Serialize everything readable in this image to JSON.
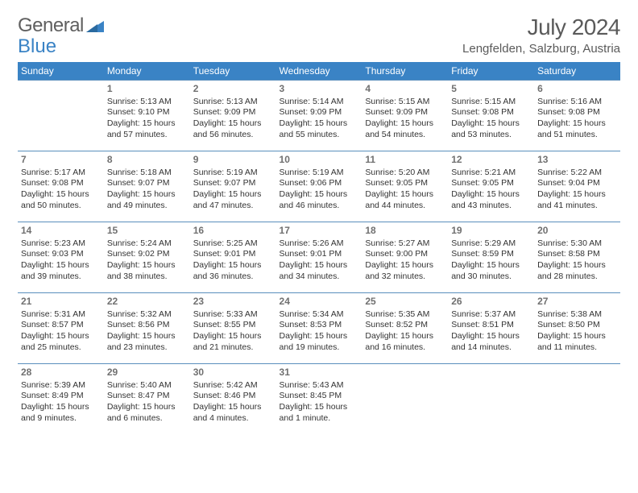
{
  "logo": {
    "text_a": "General",
    "text_b": "Blue",
    "text_color": "#5f5f5f",
    "accent_color": "#3a83c5"
  },
  "header": {
    "month_year": "July 2024",
    "location": "Lengfelden, Salzburg, Austria"
  },
  "colors": {
    "header_bg": "#3a83c5",
    "header_text": "#ffffff",
    "cell_border": "#5a8fbd",
    "daynum_color": "#707070",
    "body_text": "#333333",
    "page_bg": "#ffffff"
  },
  "dow": [
    "Sunday",
    "Monday",
    "Tuesday",
    "Wednesday",
    "Thursday",
    "Friday",
    "Saturday"
  ],
  "weeks": [
    [
      null,
      {
        "n": "1",
        "sr": "5:13 AM",
        "ss": "9:10 PM",
        "dl": "15 hours and 57 minutes."
      },
      {
        "n": "2",
        "sr": "5:13 AM",
        "ss": "9:09 PM",
        "dl": "15 hours and 56 minutes."
      },
      {
        "n": "3",
        "sr": "5:14 AM",
        "ss": "9:09 PM",
        "dl": "15 hours and 55 minutes."
      },
      {
        "n": "4",
        "sr": "5:15 AM",
        "ss": "9:09 PM",
        "dl": "15 hours and 54 minutes."
      },
      {
        "n": "5",
        "sr": "5:15 AM",
        "ss": "9:08 PM",
        "dl": "15 hours and 53 minutes."
      },
      {
        "n": "6",
        "sr": "5:16 AM",
        "ss": "9:08 PM",
        "dl": "15 hours and 51 minutes."
      }
    ],
    [
      {
        "n": "7",
        "sr": "5:17 AM",
        "ss": "9:08 PM",
        "dl": "15 hours and 50 minutes."
      },
      {
        "n": "8",
        "sr": "5:18 AM",
        "ss": "9:07 PM",
        "dl": "15 hours and 49 minutes."
      },
      {
        "n": "9",
        "sr": "5:19 AM",
        "ss": "9:07 PM",
        "dl": "15 hours and 47 minutes."
      },
      {
        "n": "10",
        "sr": "5:19 AM",
        "ss": "9:06 PM",
        "dl": "15 hours and 46 minutes."
      },
      {
        "n": "11",
        "sr": "5:20 AM",
        "ss": "9:05 PM",
        "dl": "15 hours and 44 minutes."
      },
      {
        "n": "12",
        "sr": "5:21 AM",
        "ss": "9:05 PM",
        "dl": "15 hours and 43 minutes."
      },
      {
        "n": "13",
        "sr": "5:22 AM",
        "ss": "9:04 PM",
        "dl": "15 hours and 41 minutes."
      }
    ],
    [
      {
        "n": "14",
        "sr": "5:23 AM",
        "ss": "9:03 PM",
        "dl": "15 hours and 39 minutes."
      },
      {
        "n": "15",
        "sr": "5:24 AM",
        "ss": "9:02 PM",
        "dl": "15 hours and 38 minutes."
      },
      {
        "n": "16",
        "sr": "5:25 AM",
        "ss": "9:01 PM",
        "dl": "15 hours and 36 minutes."
      },
      {
        "n": "17",
        "sr": "5:26 AM",
        "ss": "9:01 PM",
        "dl": "15 hours and 34 minutes."
      },
      {
        "n": "18",
        "sr": "5:27 AM",
        "ss": "9:00 PM",
        "dl": "15 hours and 32 minutes."
      },
      {
        "n": "19",
        "sr": "5:29 AM",
        "ss": "8:59 PM",
        "dl": "15 hours and 30 minutes."
      },
      {
        "n": "20",
        "sr": "5:30 AM",
        "ss": "8:58 PM",
        "dl": "15 hours and 28 minutes."
      }
    ],
    [
      {
        "n": "21",
        "sr": "5:31 AM",
        "ss": "8:57 PM",
        "dl": "15 hours and 25 minutes."
      },
      {
        "n": "22",
        "sr": "5:32 AM",
        "ss": "8:56 PM",
        "dl": "15 hours and 23 minutes."
      },
      {
        "n": "23",
        "sr": "5:33 AM",
        "ss": "8:55 PM",
        "dl": "15 hours and 21 minutes."
      },
      {
        "n": "24",
        "sr": "5:34 AM",
        "ss": "8:53 PM",
        "dl": "15 hours and 19 minutes."
      },
      {
        "n": "25",
        "sr": "5:35 AM",
        "ss": "8:52 PM",
        "dl": "15 hours and 16 minutes."
      },
      {
        "n": "26",
        "sr": "5:37 AM",
        "ss": "8:51 PM",
        "dl": "15 hours and 14 minutes."
      },
      {
        "n": "27",
        "sr": "5:38 AM",
        "ss": "8:50 PM",
        "dl": "15 hours and 11 minutes."
      }
    ],
    [
      {
        "n": "28",
        "sr": "5:39 AM",
        "ss": "8:49 PM",
        "dl": "15 hours and 9 minutes."
      },
      {
        "n": "29",
        "sr": "5:40 AM",
        "ss": "8:47 PM",
        "dl": "15 hours and 6 minutes."
      },
      {
        "n": "30",
        "sr": "5:42 AM",
        "ss": "8:46 PM",
        "dl": "15 hours and 4 minutes."
      },
      {
        "n": "31",
        "sr": "5:43 AM",
        "ss": "8:45 PM",
        "dl": "15 hours and 1 minute."
      },
      null,
      null,
      null
    ]
  ],
  "labels": {
    "sunrise": "Sunrise:",
    "sunset": "Sunset:",
    "daylight": "Daylight:"
  }
}
